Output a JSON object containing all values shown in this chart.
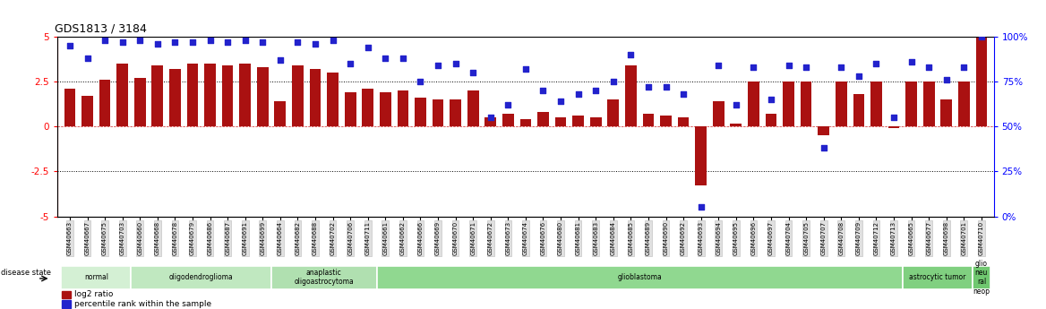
{
  "title": "GDS1813 / 3184",
  "samples": [
    "GSM40663",
    "GSM40667",
    "GSM40675",
    "GSM40703",
    "GSM40660",
    "GSM40668",
    "GSM40678",
    "GSM40679",
    "GSM40686",
    "GSM40687",
    "GSM40691",
    "GSM40699",
    "GSM40664",
    "GSM40682",
    "GSM40688",
    "GSM40702",
    "GSM40706",
    "GSM40711",
    "GSM40661",
    "GSM40662",
    "GSM40666",
    "GSM40669",
    "GSM40670",
    "GSM40671",
    "GSM40672",
    "GSM40673",
    "GSM40674",
    "GSM40676",
    "GSM40680",
    "GSM40681",
    "GSM40683",
    "GSM40684",
    "GSM40685",
    "GSM40689",
    "GSM40690",
    "GSM40692",
    "GSM40693",
    "GSM40694",
    "GSM40695",
    "GSM40696",
    "GSM40697",
    "GSM40704",
    "GSM40705",
    "GSM40707",
    "GSM40708",
    "GSM40709",
    "GSM40712",
    "GSM40713",
    "GSM40665",
    "GSM40677",
    "GSM40698",
    "GSM40701",
    "GSM40710"
  ],
  "log2_ratio": [
    2.1,
    1.7,
    2.6,
    3.5,
    2.7,
    3.4,
    3.2,
    3.5,
    3.5,
    3.4,
    3.5,
    3.3,
    1.4,
    3.4,
    3.2,
    3.0,
    1.9,
    2.1,
    1.9,
    2.0,
    1.6,
    1.5,
    1.5,
    2.0,
    0.5,
    0.7,
    0.4,
    0.8,
    0.5,
    0.6,
    0.5,
    1.5,
    3.4,
    0.7,
    0.6,
    0.5,
    -3.3,
    1.4,
    0.15,
    2.5,
    0.7,
    2.5,
    2.5,
    -0.5,
    2.5,
    1.8,
    2.5,
    -0.1,
    2.5,
    2.5,
    1.5,
    2.5,
    5.0
  ],
  "percentile": [
    95,
    88,
    98,
    97,
    98,
    96,
    97,
    97,
    98,
    97,
    98,
    97,
    87,
    97,
    96,
    98,
    85,
    94,
    88,
    88,
    75,
    84,
    85,
    80,
    55,
    62,
    82,
    70,
    64,
    68,
    70,
    75,
    90,
    72,
    72,
    68,
    5,
    84,
    62,
    83,
    65,
    84,
    83,
    38,
    83,
    78,
    85,
    55,
    86,
    83,
    76,
    83,
    100
  ],
  "disease_groups": [
    {
      "label": "normal",
      "start": 0,
      "end": 4,
      "color": "#d4f0d4"
    },
    {
      "label": "oligodendroglioma",
      "start": 4,
      "end": 12,
      "color": "#c0e8c0"
    },
    {
      "label": "anaplastic\noligoastrocytoma",
      "start": 12,
      "end": 18,
      "color": "#b0e0b0"
    },
    {
      "label": "glioblastoma",
      "start": 18,
      "end": 48,
      "color": "#90d890"
    },
    {
      "label": "astrocytic tumor",
      "start": 48,
      "end": 52,
      "color": "#80d080"
    },
    {
      "label": "glio\nneu\nral\nneop",
      "start": 52,
      "end": 53,
      "color": "#70c870"
    }
  ],
  "bar_color": "#aa1111",
  "dot_color": "#2222cc",
  "ylim_left": [
    -5,
    5
  ],
  "ylim_right": [
    0,
    100
  ],
  "yticks_left": [
    -5,
    -2.5,
    0,
    2.5,
    5
  ],
  "yticks_right": [
    0,
    25,
    50,
    75,
    100
  ],
  "hlines_dotted": [
    -2.5,
    2.5
  ],
  "hline_red_dashed": 0
}
